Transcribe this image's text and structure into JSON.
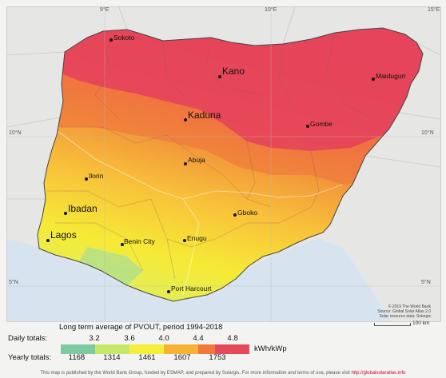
{
  "map": {
    "graticule": {
      "top": [
        "5°E",
        "10°E",
        "15°E"
      ],
      "left": [
        "10°N",
        "5°N"
      ],
      "right": [
        "10°N",
        "5°N"
      ]
    },
    "cities": [
      {
        "name": "Sokoto",
        "size": "small"
      },
      {
        "name": "Kano",
        "size": "large"
      },
      {
        "name": "Maiduguri",
        "size": "small"
      },
      {
        "name": "Kaduna",
        "size": "large"
      },
      {
        "name": "Gombe",
        "size": "small"
      },
      {
        "name": "Abuja",
        "size": "small"
      },
      {
        "name": "Ilorin",
        "size": "small"
      },
      {
        "name": "Ibadan",
        "size": "large"
      },
      {
        "name": "Gboko",
        "size": "small"
      },
      {
        "name": "Lagos",
        "size": "large"
      },
      {
        "name": "Benin City",
        "size": "small"
      },
      {
        "name": "Enugu",
        "size": "small"
      },
      {
        "name": "Port Harcourt",
        "size": "small"
      }
    ],
    "credit_lines": [
      "© 2019 The World Bank",
      "Source: Global Solar Atlas 2.0",
      "Solar resource data: Solargis"
    ],
    "scale_label": "100 km"
  },
  "legend": {
    "title": "Long term average of PVOUT, period 1994-2018",
    "daily_label": "Daily totals:",
    "yearly_label": "Yearly totals:",
    "daily_values": [
      "3.2",
      "3.6",
      "4.0",
      "4.4",
      "4.8"
    ],
    "yearly_values": [
      "1168",
      "1314",
      "1461",
      "1607",
      "1753"
    ],
    "unit": "kWh/kWp",
    "colors": [
      "#7fc9a0",
      "#c6e86a",
      "#f4ef3a",
      "#f7b334",
      "#f2773b",
      "#e44a5a"
    ]
  },
  "footer": {
    "text": "This map is published by the World Bank Group, funded by ESMAP, and prepared by Solargis. For more information and terms of use, please visit",
    "link": "http://globalsolaratlas.info"
  }
}
